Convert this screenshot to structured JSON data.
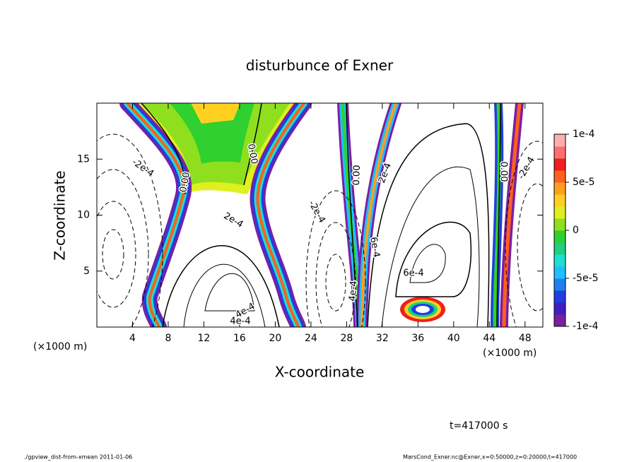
{
  "chart_data": {
    "type": "contour",
    "title": "disturbunce of Exner",
    "x_label": "X-coordinate",
    "y_label": "Z-coordinate",
    "x_unit_label": "(×1000 m)",
    "y_unit_label": "(×1000 m)",
    "xlim": [
      0,
      50
    ],
    "ylim": [
      0,
      20
    ],
    "xticks": [
      4,
      8,
      12,
      16,
      20,
      24,
      28,
      32,
      36,
      40,
      44,
      48
    ],
    "yticks": [
      5,
      10,
      15
    ],
    "colorbar": {
      "lim": [
        -0.0001,
        0.0001
      ],
      "ticks": [
        {
          "value": 0.0001,
          "label": "1e-4"
        },
        {
          "value": 5e-05,
          "label": "5e-5"
        },
        {
          "value": 0,
          "label": "0"
        },
        {
          "value": -5e-05,
          "label": "-5e-5"
        },
        {
          "value": -0.0001,
          "label": "-1e-4"
        }
      ],
      "colors": [
        "#7b1fa2",
        "#3f1fbf",
        "#1f3fe0",
        "#1f7ff0",
        "#1fbfff",
        "#1fdfd0",
        "#1fd080",
        "#2fd02f",
        "#8fdf1f",
        "#dfef1f",
        "#ffd01f",
        "#ff9f1f",
        "#ff5f1f",
        "#ef1f1f",
        "#ff6f6f",
        "#ffafaf"
      ]
    },
    "contour_labels": [
      "0.00",
      "0.00",
      "0.00",
      "0.00",
      "-2e-4",
      "-2e-4",
      "2e-4",
      "2e-4",
      "-2e-4",
      "6e-4",
      "6e-4",
      "4e-4",
      "4e-4",
      "4e-4"
    ],
    "time_label": "t=417000 s",
    "footer_left": "./gpview_dist-from-xmean  2011-01-06",
    "footer_right": "MarsCond_Exner.nc@Exner,x=0:50000,z=0:20000,t=417000"
  }
}
